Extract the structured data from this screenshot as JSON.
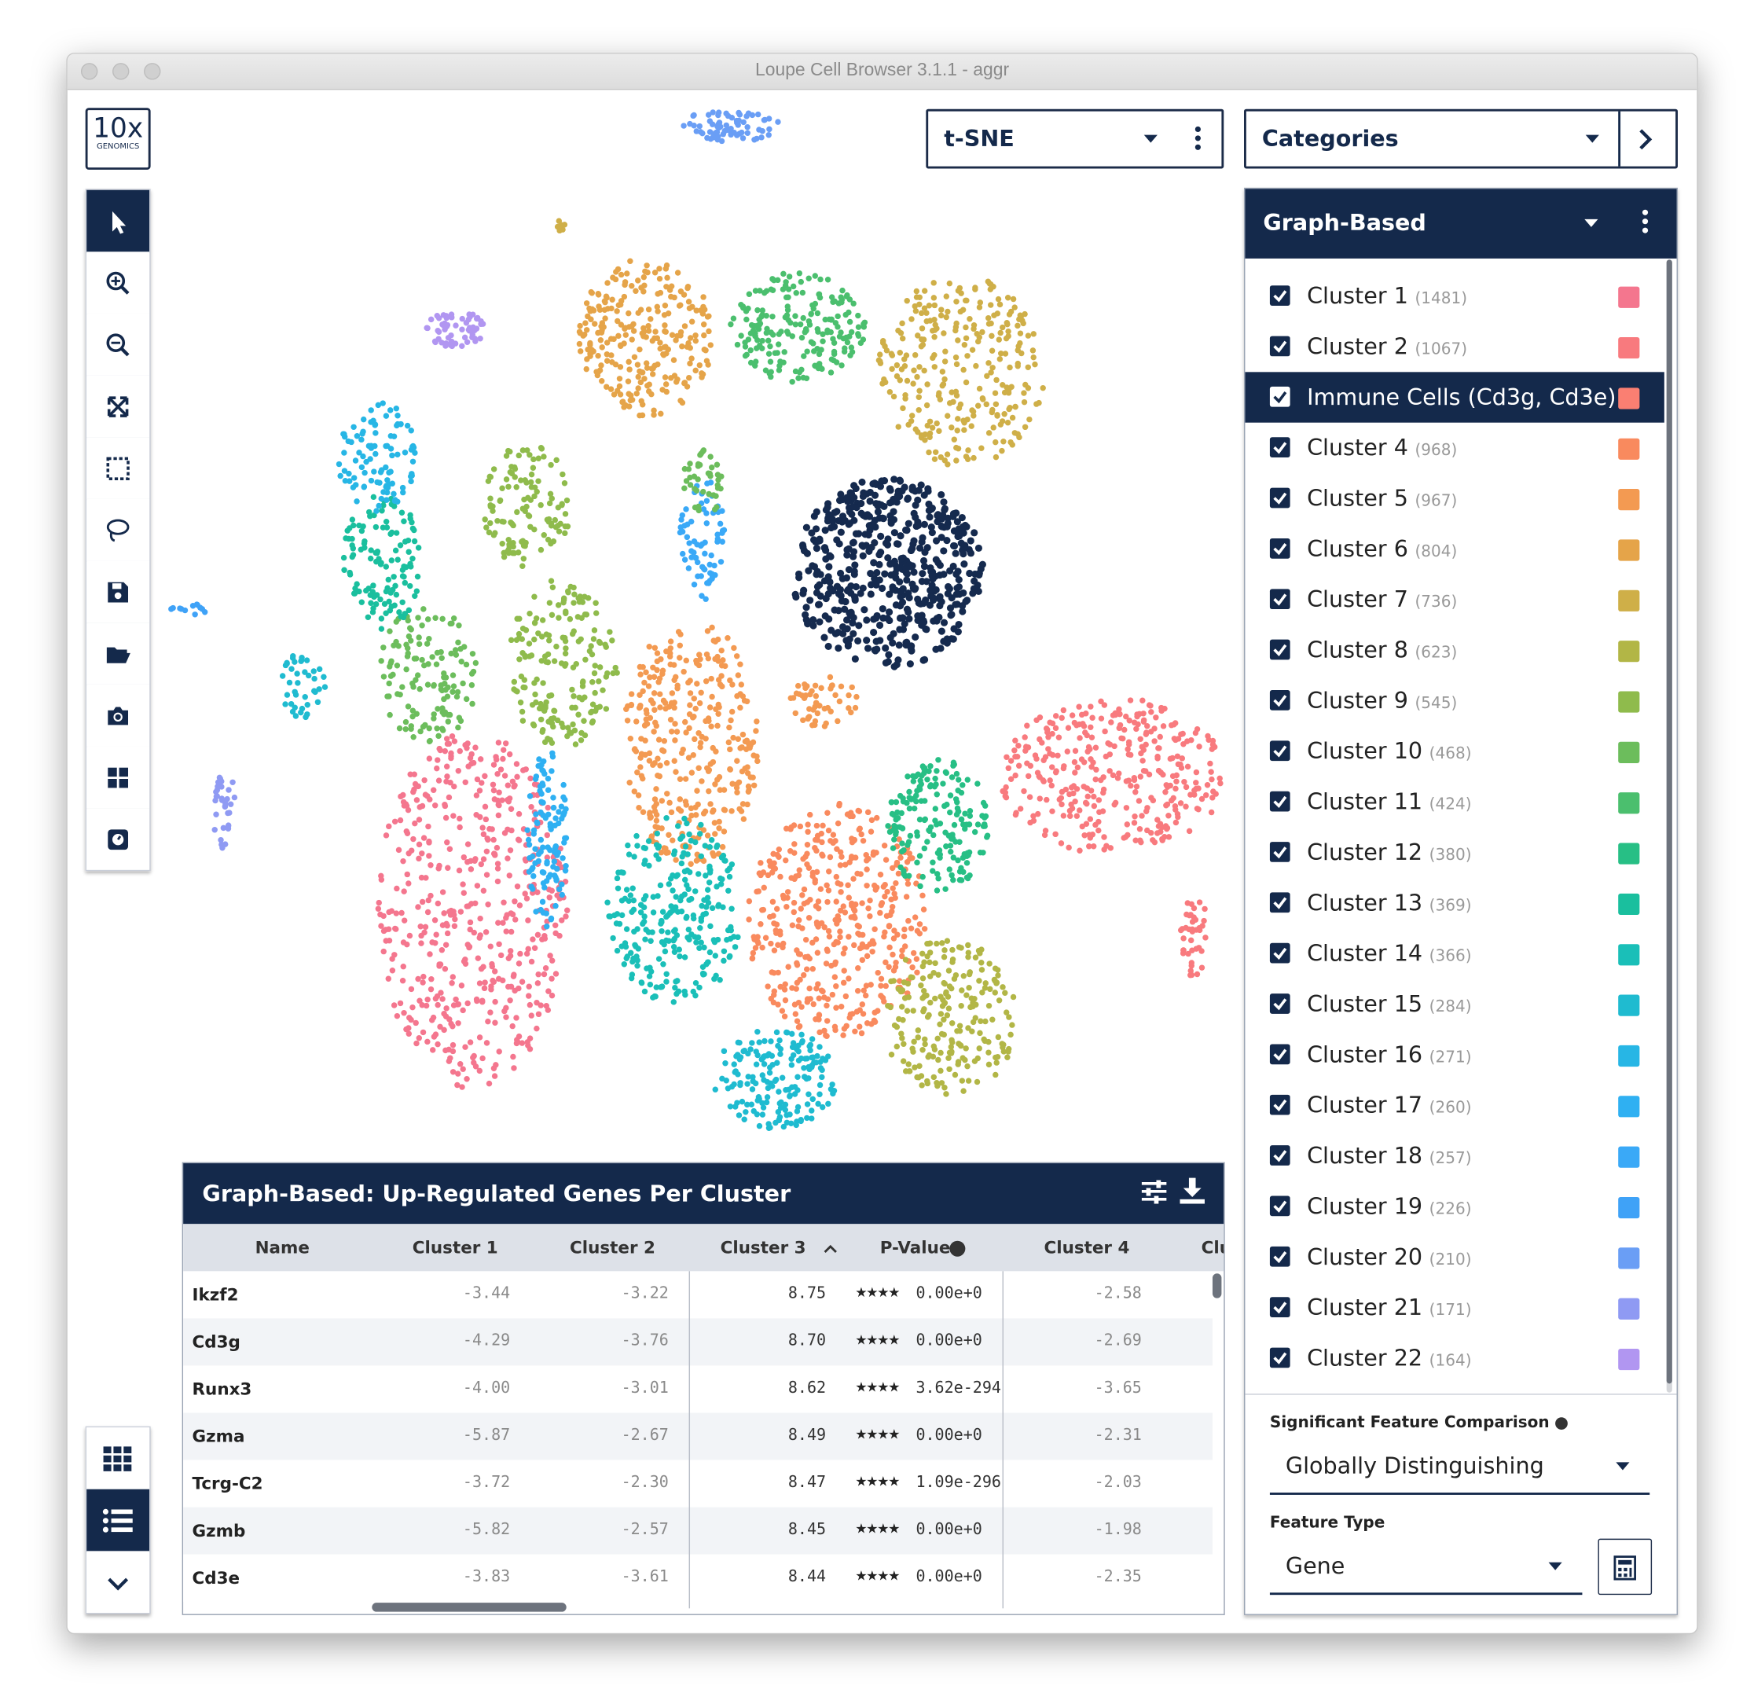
{
  "window": {
    "title": "Loupe Cell Browser 3.1.1 - aggr"
  },
  "logo": {
    "text": "10x",
    "subtext": "GENOMICS"
  },
  "projection": {
    "selected": "t-SNE"
  },
  "category_panel": {
    "selector": "Categories",
    "group": "Graph-Based",
    "clusters": [
      {
        "name": "Cluster 1",
        "count": "(1481)",
        "color": "#f4768e"
      },
      {
        "name": "Cluster 2",
        "count": "(1067)",
        "color": "#f87a7e"
      },
      {
        "name": "Immune Cells (Cd3g, Cd3e)...",
        "count": null,
        "color": "#fa7f72"
      },
      {
        "name": "Cluster 4",
        "count": "(968)",
        "color": "#f98a5e"
      },
      {
        "name": "Cluster 5",
        "count": "(967)",
        "color": "#f39a52"
      },
      {
        "name": "Cluster 6",
        "count": "(804)",
        "color": "#e5a449"
      },
      {
        "name": "Cluster 7",
        "count": "(736)",
        "color": "#cfaf48"
      },
      {
        "name": "Cluster 8",
        "count": "(623)",
        "color": "#b2b646"
      },
      {
        "name": "Cluster 9",
        "count": "(545)",
        "color": "#8fbb4c"
      },
      {
        "name": "Cluster 10",
        "count": "(468)",
        "color": "#6cbd5c"
      },
      {
        "name": "Cluster 11",
        "count": "(424)",
        "color": "#4bbf6e"
      },
      {
        "name": "Cluster 12",
        "count": "(380)",
        "color": "#27bf85"
      },
      {
        "name": "Cluster 13",
        "count": "(369)",
        "color": "#1abf9e"
      },
      {
        "name": "Cluster 14",
        "count": "(366)",
        "color": "#1abfb8"
      },
      {
        "name": "Cluster 15",
        "count": "(284)",
        "color": "#1fbbd0"
      },
      {
        "name": "Cluster 16",
        "count": "(271)",
        "color": "#27b6e5"
      },
      {
        "name": "Cluster 17",
        "count": "(260)",
        "color": "#2fb0f2"
      },
      {
        "name": "Cluster 18",
        "count": "(257)",
        "color": "#3aa9f7"
      },
      {
        "name": "Cluster 19",
        "count": "(226)",
        "color": "#3fa2f7"
      },
      {
        "name": "Cluster 20",
        "count": "(210)",
        "color": "#6a9ef5"
      },
      {
        "name": "Cluster 21",
        "count": "(171)",
        "color": "#8f9af3"
      },
      {
        "name": "Cluster 22",
        "count": "(164)",
        "color": "#b196f1"
      }
    ],
    "selected_index": 2
  },
  "settings": {
    "comparison_label": "Significant Feature Comparison",
    "comparison_value": "Globally Distinguishing",
    "feature_type_label": "Feature Type",
    "feature_type_value": "Gene"
  },
  "table": {
    "title": "Graph-Based: Up-Regulated Genes Per Cluster",
    "columns": [
      "Name",
      "Cluster 1",
      "Cluster 2",
      "Cluster 3",
      "P-Value",
      "Cluster 4",
      "Clu"
    ],
    "rows": [
      [
        "Ikzf2",
        "-3.44",
        "-3.22",
        "8.75",
        "★★★★",
        "0.00e+0",
        "-2.58"
      ],
      [
        "Cd3g",
        "-4.29",
        "-3.76",
        "8.70",
        "★★★★",
        "0.00e+0",
        "-2.69"
      ],
      [
        "Runx3",
        "-4.00",
        "-3.01",
        "8.62",
        "★★★★",
        "3.62e-294",
        "-3.65"
      ],
      [
        "Gzma",
        "-5.87",
        "-2.67",
        "8.49",
        "★★★★",
        "0.00e+0",
        "-2.31"
      ],
      [
        "Tcrg-C2",
        "-3.72",
        "-2.30",
        "8.47",
        "★★★★",
        "1.09e-296",
        "-2.03"
      ],
      [
        "Gzmb",
        "-5.82",
        "-2.57",
        "8.45",
        "★★★★",
        "0.00e+0",
        "-1.98"
      ],
      [
        "Cd3e",
        "-3.83",
        "-3.61",
        "8.44",
        "★★★★",
        "0.00e+0",
        "-2.35"
      ]
    ]
  }
}
